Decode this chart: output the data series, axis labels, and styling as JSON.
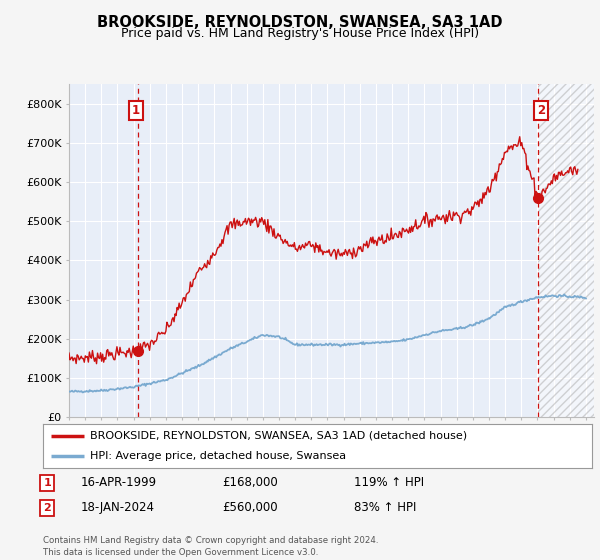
{
  "title": "BROOKSIDE, REYNOLDSTON, SWANSEA, SA3 1AD",
  "subtitle": "Price paid vs. HM Land Registry's House Price Index (HPI)",
  "ylim": [
    0,
    850000
  ],
  "xlim_start": 1995.0,
  "xlim_end": 2027.5,
  "background_color": "#f5f5f5",
  "plot_bg_color": "#e8eef8",
  "grid_color": "#ffffff",
  "sale1_date": 1999.29,
  "sale1_price": 168000,
  "sale2_date": 2024.05,
  "sale2_price": 560000,
  "hpi_color": "#7aaad0",
  "property_color": "#cc1111",
  "vline_color": "#cc1111",
  "legend_label_property": "BROOKSIDE, REYNOLDSTON, SWANSEA, SA3 1AD (detached house)",
  "legend_label_hpi": "HPI: Average price, detached house, Swansea",
  "annotation1_date": "16-APR-1999",
  "annotation1_price": "£168,000",
  "annotation1_hpi": "119% ↑ HPI",
  "annotation2_date": "18-JAN-2024",
  "annotation2_price": "£560,000",
  "annotation2_hpi": "83% ↑ HPI",
  "footer": "Contains HM Land Registry data © Crown copyright and database right 2024.\nThis data is licensed under the Open Government Licence v3.0.",
  "yticks": [
    0,
    100000,
    200000,
    300000,
    400000,
    500000,
    600000,
    700000,
    800000
  ],
  "ytick_labels": [
    "£0",
    "£100K",
    "£200K",
    "£300K",
    "£400K",
    "£500K",
    "£600K",
    "£700K",
    "£800K"
  ]
}
